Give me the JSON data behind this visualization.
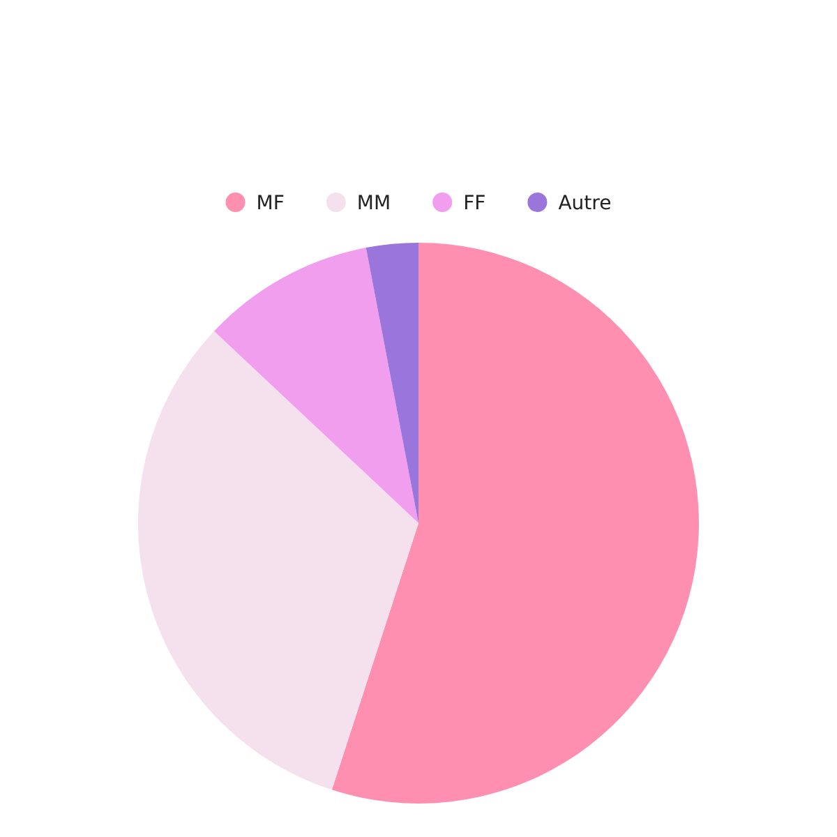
{
  "chart_data": {
    "type": "pie",
    "categories": [
      "MF",
      "MM",
      "FF",
      "Autre"
    ],
    "values": [
      55,
      32,
      10,
      3
    ],
    "colors": [
      "#ff8fb1",
      "#f5e1ee",
      "#f19eef",
      "#9a75dc"
    ],
    "legend": "top"
  }
}
